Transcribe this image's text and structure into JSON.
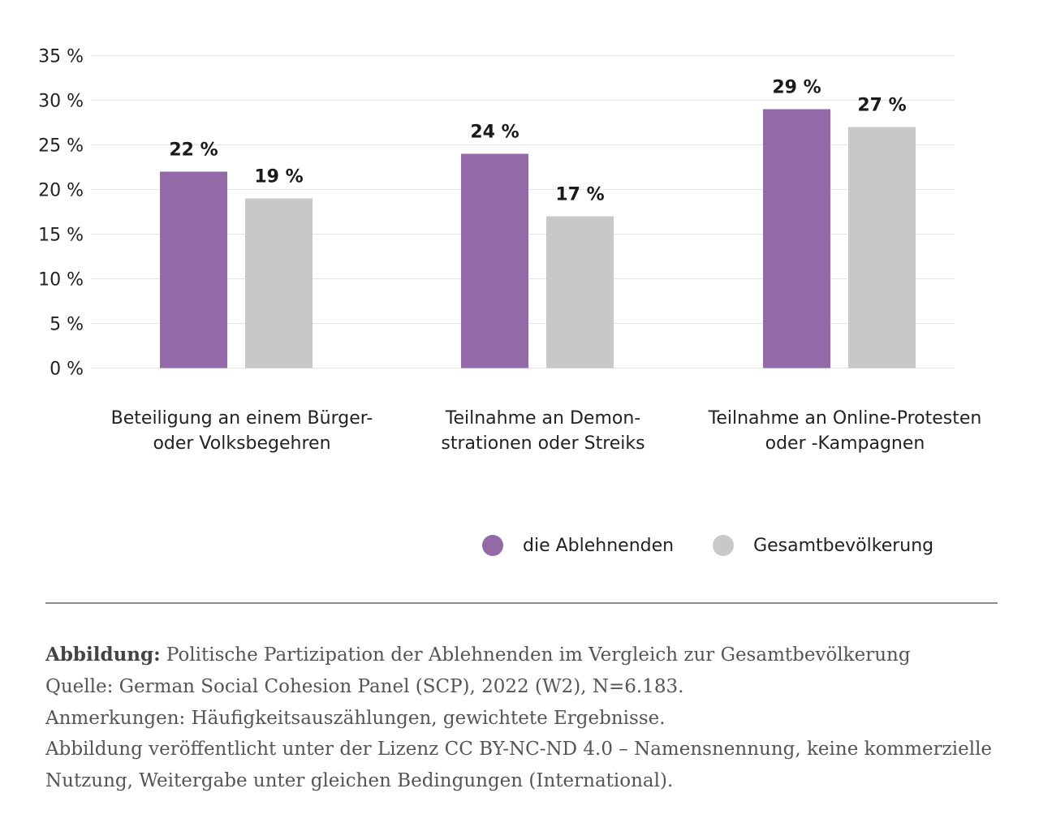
{
  "chart_data": {
    "type": "bar",
    "categories": [
      [
        "Beteiligung an einem Bürger-",
        "oder Volksbegehren"
      ],
      [
        "Teilnahme an Demon-",
        "strationen oder Streiks"
      ],
      [
        "Teilnahme an Online-Protesten",
        "oder -Kampagnen"
      ]
    ],
    "series": [
      {
        "name": "die Ablehnenden",
        "color": "#9469a8",
        "values": [
          22,
          24,
          29
        ],
        "labels": [
          "22 %",
          "24 %",
          "29 %"
        ]
      },
      {
        "name": "Gesamtbevölkerung",
        "color": "#c8c8c8",
        "values": [
          19,
          17,
          27
        ],
        "labels": [
          "19 %",
          "17 %",
          "27 %"
        ]
      }
    ],
    "yticks": [
      0,
      5,
      10,
      15,
      20,
      25,
      30,
      35
    ],
    "ytick_labels": [
      "0 %",
      "5 %",
      "10 %",
      "15 %",
      "20 %",
      "25 %",
      "30 %",
      "35 %"
    ],
    "ylim": [
      0,
      35
    ],
    "grid": true,
    "legend_position": "bottom-right",
    "title": "",
    "xlabel": "",
    "ylabel": ""
  },
  "caption": {
    "label": "Abbildung:",
    "title": " Politische Partizipation der Ablehnenden im Vergleich zur Gesamtbevölkerung",
    "source": "Quelle: German Social Cohesion Panel (SCP), 2022 (W2), N=6.183.",
    "notes": "Anmerkungen: Häufigkeitsauszählungen, gewichtete Ergebnisse.",
    "license": "Abbildung veröffentlicht unter der Lizenz CC BY-NC-ND 4.0 – Namensnennung, keine kommerzielle Nutzung, Weitergabe unter gleichen Bedingungen (International)."
  }
}
